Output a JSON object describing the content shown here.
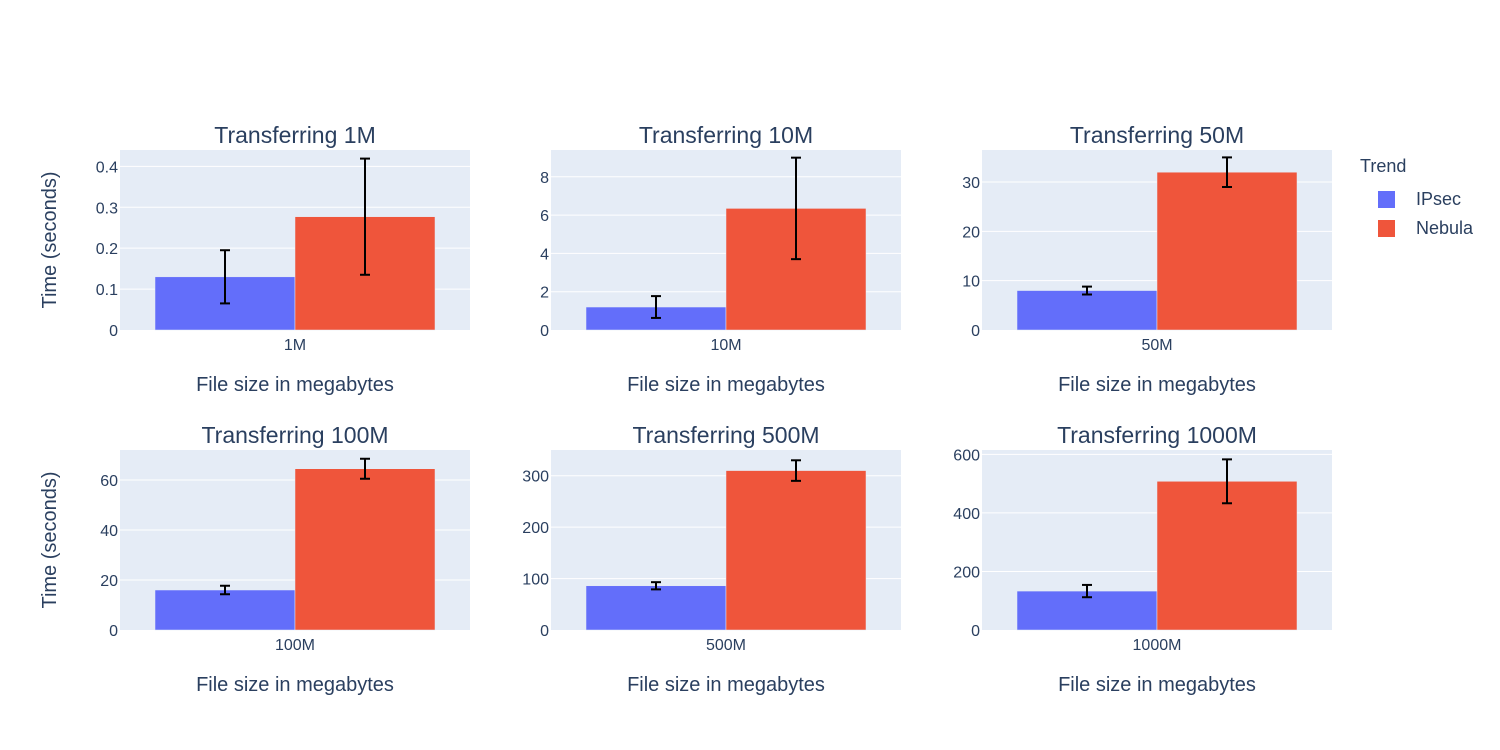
{
  "legend": {
    "title": "Trend"
  },
  "chart_data": [
    {
      "type": "bar",
      "title": "Transferring 1M",
      "xlabel": "File size in megabytes",
      "ylabel": "Time (seconds)",
      "categories": [
        "1M"
      ],
      "ylim": [
        0,
        0.44
      ],
      "yticks": [
        0,
        0.1,
        0.2,
        0.3,
        0.4
      ],
      "yticklabels": [
        "0",
        "0.1",
        "0.2",
        "0.3",
        "0.4"
      ],
      "series": [
        {
          "name": "IPsec",
          "color": "#636efa",
          "values": [
            0.13
          ],
          "error": [
            0.065
          ]
        },
        {
          "name": "Nebula",
          "color": "#ef553b",
          "values": [
            0.277
          ],
          "error": [
            0.142
          ]
        }
      ]
    },
    {
      "type": "bar",
      "title": "Transferring 10M",
      "xlabel": "File size in megabytes",
      "ylabel": "",
      "categories": [
        "10M"
      ],
      "ylim": [
        0,
        9.4
      ],
      "yticks": [
        0,
        2,
        4,
        6,
        8
      ],
      "yticklabels": [
        "0",
        "2",
        "4",
        "6",
        "8"
      ],
      "series": [
        {
          "name": "IPsec",
          "color": "#636efa",
          "values": [
            1.2
          ],
          "error": [
            0.57
          ]
        },
        {
          "name": "Nebula",
          "color": "#ef553b",
          "values": [
            6.35
          ],
          "error": [
            2.65
          ]
        }
      ]
    },
    {
      "type": "bar",
      "title": "Transferring 50M",
      "xlabel": "File size in megabytes",
      "ylabel": "",
      "categories": [
        "50M"
      ],
      "ylim": [
        0,
        36.5
      ],
      "yticks": [
        0,
        10,
        20,
        30
      ],
      "yticklabels": [
        "0",
        "10",
        "20",
        "30"
      ],
      "series": [
        {
          "name": "IPsec",
          "color": "#636efa",
          "values": [
            8.0
          ],
          "error": [
            0.8
          ]
        },
        {
          "name": "Nebula",
          "color": "#ef553b",
          "values": [
            32.0
          ],
          "error": [
            3.0
          ]
        }
      ]
    },
    {
      "type": "bar",
      "title": "Transferring 100M",
      "xlabel": "File size in megabytes",
      "ylabel": "Time (seconds)",
      "categories": [
        "100M"
      ],
      "ylim": [
        0,
        72
      ],
      "yticks": [
        0,
        20,
        40,
        60
      ],
      "yticklabels": [
        "0",
        "20",
        "40",
        "60"
      ],
      "series": [
        {
          "name": "IPsec",
          "color": "#636efa",
          "values": [
            16.0
          ],
          "error": [
            1.7
          ]
        },
        {
          "name": "Nebula",
          "color": "#ef553b",
          "values": [
            64.5
          ],
          "error": [
            4.0
          ]
        }
      ]
    },
    {
      "type": "bar",
      "title": "Transferring 500M",
      "xlabel": "File size in megabytes",
      "ylabel": "",
      "categories": [
        "500M"
      ],
      "ylim": [
        0,
        350
      ],
      "yticks": [
        0,
        100,
        200,
        300
      ],
      "yticklabels": [
        "0",
        "100",
        "200",
        "300"
      ],
      "series": [
        {
          "name": "IPsec",
          "color": "#636efa",
          "values": [
            86.0
          ],
          "error": [
            7.0
          ]
        },
        {
          "name": "Nebula",
          "color": "#ef553b",
          "values": [
            310.0
          ],
          "error": [
            20.0
          ]
        }
      ]
    },
    {
      "type": "bar",
      "title": "Transferring 1000M",
      "xlabel": "File size in megabytes",
      "ylabel": "",
      "categories": [
        "1000M"
      ],
      "ylim": [
        0,
        615
      ],
      "yticks": [
        0,
        200,
        400,
        600
      ],
      "yticklabels": [
        "0",
        "200",
        "400",
        "600"
      ],
      "series": [
        {
          "name": "IPsec",
          "color": "#636efa",
          "values": [
            133.0
          ],
          "error": [
            21.0
          ]
        },
        {
          "name": "Nebula",
          "color": "#ef553b",
          "values": [
            508.0
          ],
          "error": [
            75.0
          ]
        }
      ]
    }
  ]
}
